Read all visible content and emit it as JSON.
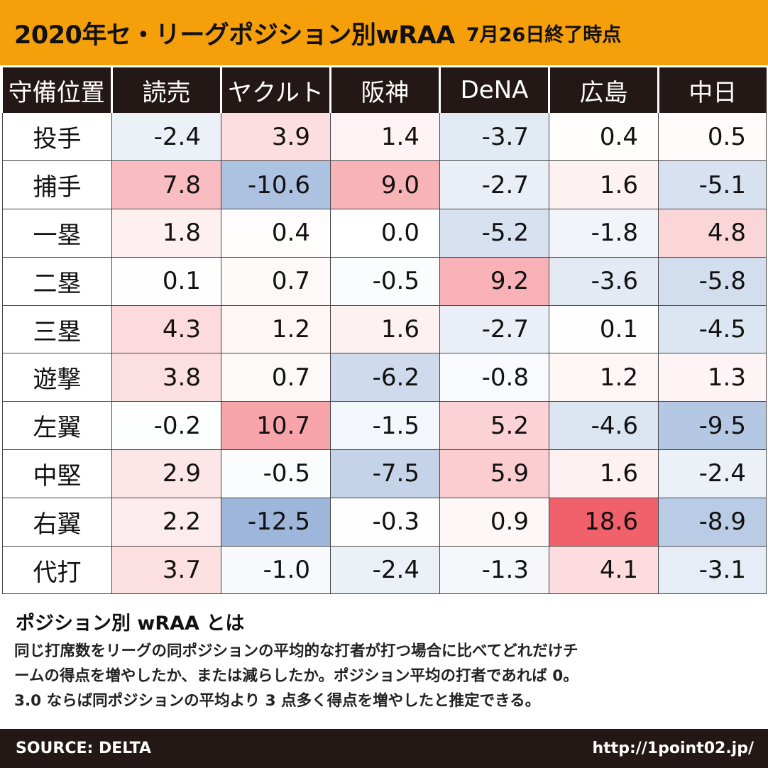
{
  "title": "2020年セ・リーグポジション別wRAA",
  "subtitle": "7月26日終了時点",
  "chart_data": {
    "type": "heatmap",
    "corner_label": "守備位置",
    "columns": [
      "読売",
      "ヤクルト",
      "阪神",
      "DeNA",
      "広島",
      "中日"
    ],
    "rows": [
      "投手",
      "捕手",
      "一塁",
      "二塁",
      "三塁",
      "遊撃",
      "左翼",
      "中堅",
      "右翼",
      "代打"
    ],
    "values": [
      [
        "-2.4",
        "3.9",
        "1.4",
        "-3.7",
        "0.4",
        "0.5"
      ],
      [
        "7.8",
        "-10.6",
        "9.0",
        "-2.7",
        "1.6",
        "-5.1"
      ],
      [
        "1.8",
        "0.4",
        "0.0",
        "-5.2",
        "-1.8",
        "4.8"
      ],
      [
        "0.1",
        "0.7",
        "-0.5",
        "9.2",
        "-3.6",
        "-5.8"
      ],
      [
        "4.3",
        "1.2",
        "1.6",
        "-2.7",
        "0.1",
        "-4.5"
      ],
      [
        "3.8",
        "0.7",
        "-6.2",
        "-0.8",
        "1.2",
        "1.3"
      ],
      [
        "-0.2",
        "10.7",
        "-1.5",
        "5.2",
        "-4.6",
        "-9.5"
      ],
      [
        "2.9",
        "-0.5",
        "-7.5",
        "5.9",
        "1.6",
        "-2.4"
      ],
      [
        "2.2",
        "-12.5",
        "-0.3",
        "0.9",
        "18.6",
        "-8.9"
      ],
      [
        "3.7",
        "-1.0",
        "-2.4",
        "-1.3",
        "4.1",
        "-3.1"
      ]
    ],
    "color_scale": {
      "negative": "#6f93c8",
      "zero": "#ffffff",
      "positive": "#f1616b"
    }
  },
  "note": {
    "title": "ポジション別 wRAA とは",
    "lines": [
      "同じ打席数をリーグの同ポジションの平均的な打者が打つ場合に比べてどれだけチ",
      "ームの得点を増やしたか、または減らしたか。ポジション平均の打者であれば 0。",
      "3.0 ならば同ポジションの平均より 3 点多く得点を増やしたと推定できる。"
    ]
  },
  "footer": {
    "source": "SOURCE: DELTA",
    "url": "http://1point02.jp/"
  }
}
